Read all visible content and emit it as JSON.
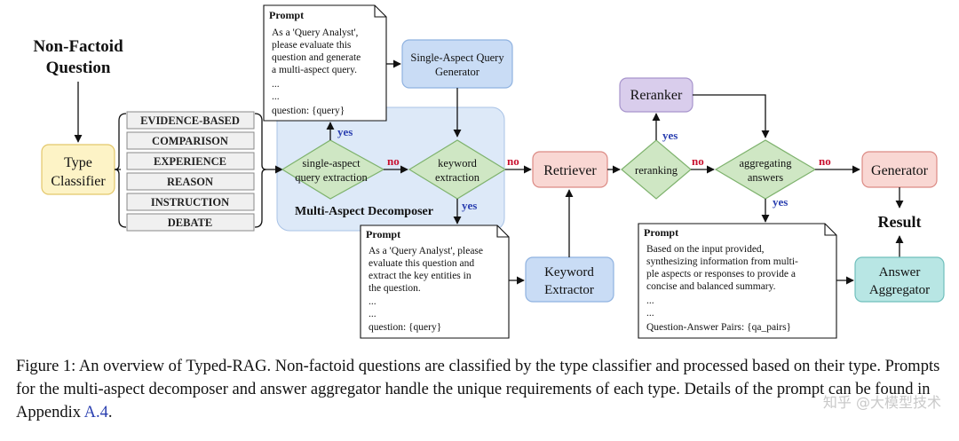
{
  "title": "Non-Factoid Question",
  "title_line1": "Non-Factoid",
  "title_line2": "Question",
  "type_classifier": {
    "line1": "Type",
    "line2": "Classifier"
  },
  "question_types": [
    "EVIDENCE-BASED",
    "COMPARISON",
    "EXPERIENCE",
    "REASON",
    "INSTRUCTION",
    "DEBATE"
  ],
  "decomposer_label": "Multi-Aspect Decomposer",
  "single_aspect_generator": {
    "line1": "Single-Aspect Query",
    "line2": "Generator"
  },
  "decision_single_aspect": {
    "line1": "single-aspect",
    "line2": "query extraction"
  },
  "decision_keyword": {
    "line1": "keyword",
    "line2": "extraction"
  },
  "decision_reranking": "reranking",
  "decision_aggregating": {
    "line1": "aggregating",
    "line2": "answers"
  },
  "retriever": "Retriever",
  "reranker": "Reranker",
  "generator": "Generator",
  "keyword_extractor": {
    "line1": "Keyword",
    "line2": "Extractor"
  },
  "answer_aggregator": {
    "line1": "Answer",
    "line2": "Aggregator"
  },
  "result": "Result",
  "yes": "yes",
  "no": "no",
  "prompt_top": {
    "title": "Prompt",
    "lines": [
      "As a 'Query Analyst',",
      "please evaluate this",
      "question and generate",
      "a multi-aspect query.",
      "...",
      "...",
      "question: {query}"
    ]
  },
  "prompt_keyword": {
    "title": "Prompt",
    "lines": [
      "As a 'Query Analyst', please",
      "evaluate this question and",
      "extract the key entities in",
      "the question.",
      "...",
      "...",
      "question: {query}"
    ]
  },
  "prompt_answer": {
    "title": "Prompt",
    "lines": [
      "Based on the input provided,",
      "synthesizing information from multi-",
      "ple aspects or responses to provide a",
      "concise and balanced summary.",
      "...",
      "...",
      "Question-Answer Pairs: {qa_pairs}"
    ]
  },
  "caption": {
    "text_before": "Figure 1: An overview of Typed-RAG. Non-factoid questions are classified by the type classifier and processed based on their type. Prompts for the multi-aspect decomposer and answer aggregator handle the unique requirements of each type. Details of the prompt can be found in Appendix ",
    "appendix_ref": "A.4",
    "text_after": "."
  },
  "watermark": "知乎 @大模型技术"
}
